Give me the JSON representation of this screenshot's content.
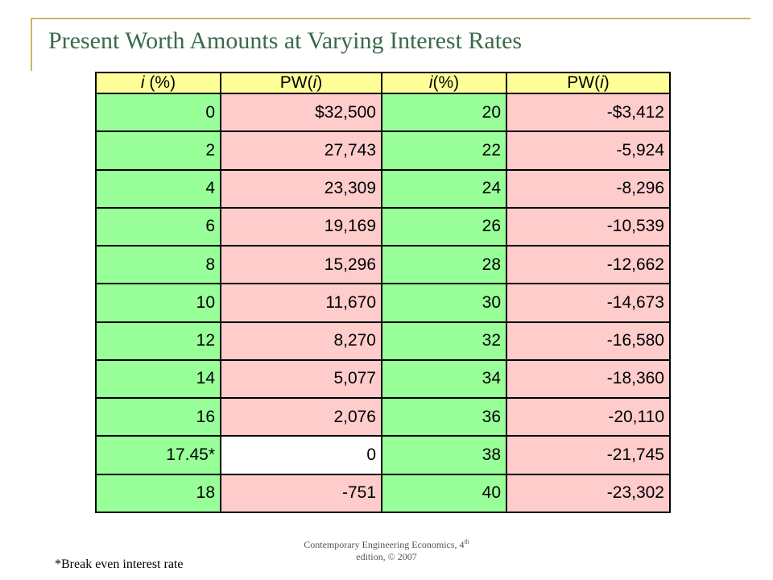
{
  "title": "Present Worth Amounts at Varying Interest Rates",
  "header": {
    "col1_var": "i",
    "col1_unit": " (%)",
    "col2_pre": "PW(",
    "col2_var": "i",
    "col2_post": ")",
    "col3_var": "i",
    "col3_unit": "(%)",
    "col4_pre": "PW(",
    "col4_var": "i",
    "col4_post": ")"
  },
  "rows": [
    {
      "i1": "0",
      "pw1": "$32,500",
      "i2": "20",
      "pw2": "-$3,412"
    },
    {
      "i1": "2",
      "pw1": "27,743",
      "i2": "22",
      "pw2": "-5,924"
    },
    {
      "i1": "4",
      "pw1": "23,309",
      "i2": "24",
      "pw2": "-8,296"
    },
    {
      "i1": "6",
      "pw1": "19,169",
      "i2": "26",
      "pw2": "-10,539"
    },
    {
      "i1": "8",
      "pw1": "15,296",
      "i2": "28",
      "pw2": "-12,662"
    },
    {
      "i1": "10",
      "pw1": "11,670",
      "i2": "30",
      "pw2": "-14,673"
    },
    {
      "i1": "12",
      "pw1": "8,270",
      "i2": "32",
      "pw2": "-16,580"
    },
    {
      "i1": "14",
      "pw1": "5,077",
      "i2": "34",
      "pw2": "-18,360"
    },
    {
      "i1": "16",
      "pw1": "2,076",
      "i2": "36",
      "pw2": "-20,110"
    },
    {
      "i1": "17.45*",
      "pw1": "0",
      "i2": "38",
      "pw2": "-21,745"
    },
    {
      "i1": "18",
      "pw1": "-751",
      "i2": "40",
      "pw2": "-23,302"
    }
  ],
  "footer": {
    "line1_pre": "Contemporary Engineering Economics, 4",
    "line1_sup": "th",
    "line2": "edition, © 2007"
  },
  "note": "*Break even interest rate",
  "colors": {
    "header_bg": "#ffff99",
    "green_bg": "#99ff99",
    "pink_bg": "#ffcccc",
    "breakeven_bg": "#ffffff",
    "title_color": "#3a6a48",
    "accent_line": "#c8b76a"
  }
}
